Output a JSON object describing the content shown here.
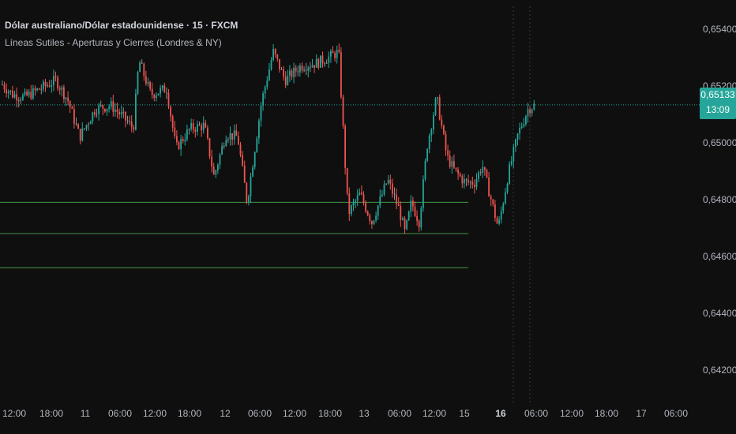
{
  "header": {
    "symbol_title": "Dólar australiano/Dólar estadounidense · 15 · FXCM",
    "indicator_title": "Líneas Sutiles - Aperturas y Cierres (Londres & NY)"
  },
  "last_price": {
    "value": "0,65133",
    "countdown": "13:09"
  },
  "colors": {
    "background": "#0f0f0f",
    "up": "#26a69a",
    "down": "#ef5350",
    "neutral": "#8c8c8c",
    "level_line": "#4caf50",
    "price_line": "#26a69a",
    "axis_text": "#b2b5be"
  },
  "chart_data": {
    "type": "candlestick",
    "y_axis": {
      "range": [
        0.6408,
        0.6548
      ],
      "ticks": [
        0.654,
        0.652,
        0.65,
        0.648,
        0.646,
        0.644,
        0.642
      ],
      "tick_labels": [
        "0,65400",
        "0,65200",
        "0,65000",
        "0,64800",
        "0,64600",
        "0,64400",
        "0,64200"
      ]
    },
    "x_axis": {
      "ticks": [
        "12:00",
        "18:00",
        "11",
        "06:00",
        "12:00",
        "18:00",
        "12",
        "06:00",
        "12:00",
        "18:00",
        "13",
        "06:00",
        "12:00",
        "15",
        "16",
        "06:00",
        "12:00",
        "18:00",
        "17",
        "06:00"
      ],
      "bold_ticks": [
        "16"
      ]
    },
    "price_anchors": [
      [
        0,
        0.6521
      ],
      [
        15,
        0.6517
      ],
      [
        30,
        0.6516
      ],
      [
        50,
        0.6519
      ],
      [
        70,
        0.6522
      ],
      [
        85,
        0.6515
      ],
      [
        100,
        0.6502
      ],
      [
        120,
        0.6512
      ],
      [
        140,
        0.6513
      ],
      [
        155,
        0.6509
      ],
      [
        168,
        0.6505
      ],
      [
        175,
        0.6529
      ],
      [
        190,
        0.6517
      ],
      [
        210,
        0.6519
      ],
      [
        222,
        0.6498
      ],
      [
        240,
        0.6505
      ],
      [
        258,
        0.6506
      ],
      [
        270,
        0.6488
      ],
      [
        285,
        0.6503
      ],
      [
        300,
        0.6502
      ],
      [
        312,
        0.6479
      ],
      [
        330,
        0.6514
      ],
      [
        345,
        0.6532
      ],
      [
        360,
        0.6522
      ],
      [
        380,
        0.6527
      ],
      [
        400,
        0.6528
      ],
      [
        415,
        0.653
      ],
      [
        428,
        0.6532
      ],
      [
        436,
        0.6493
      ],
      [
        440,
        0.6475
      ],
      [
        455,
        0.6482
      ],
      [
        470,
        0.6472
      ],
      [
        490,
        0.6487
      ],
      [
        505,
        0.6476
      ],
      [
        512,
        0.6468
      ],
      [
        520,
        0.6479
      ],
      [
        530,
        0.6472
      ],
      [
        540,
        0.6499
      ],
      [
        552,
        0.6516
      ],
      [
        565,
        0.6495
      ],
      [
        575,
        0.649
      ],
      [
        588,
        0.6486
      ],
      [
        600,
        0.6486
      ],
      [
        610,
        0.6492
      ],
      [
        620,
        0.6481
      ],
      [
        630,
        0.647
      ],
      [
        642,
        0.6488
      ],
      [
        655,
        0.6503
      ],
      [
        668,
        0.6512
      ],
      [
        678,
        0.65135
      ]
    ],
    "levels": [
      {
        "value": 0.6479,
        "x_end": 593
      },
      {
        "value": 0.6468,
        "x_end": 593
      },
      {
        "value": 0.6456,
        "x_end": 593
      }
    ],
    "current_price": 0.65133
  }
}
